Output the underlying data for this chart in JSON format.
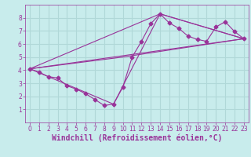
{
  "background_color": "#c8ecec",
  "grid_color": "#b0d8d8",
  "line_color": "#993399",
  "xlabel": "Windchill (Refroidissement éolien,°C)",
  "xlim": [
    -0.5,
    23.5
  ],
  "ylim": [
    0,
    9
  ],
  "xticks": [
    0,
    1,
    2,
    3,
    4,
    5,
    6,
    7,
    8,
    9,
    10,
    11,
    12,
    13,
    14,
    15,
    16,
    17,
    18,
    19,
    20,
    21,
    22,
    23
  ],
  "yticks": [
    1,
    2,
    3,
    4,
    5,
    6,
    7,
    8
  ],
  "line1_x": [
    0,
    1,
    2,
    3,
    4,
    5,
    6,
    7,
    8,
    9,
    10,
    11,
    12,
    13,
    14,
    15,
    16,
    17,
    18,
    19,
    20,
    21,
    22,
    23
  ],
  "line1_y": [
    4.1,
    3.85,
    3.5,
    3.4,
    2.8,
    2.55,
    2.2,
    1.75,
    1.3,
    1.4,
    2.7,
    5.0,
    6.2,
    7.55,
    8.3,
    7.6,
    7.2,
    6.6,
    6.35,
    6.2,
    7.3,
    7.7,
    6.95,
    6.4
  ],
  "line2_x": [
    0,
    23
  ],
  "line2_y": [
    4.1,
    6.4
  ],
  "line3_x": [
    0,
    23
  ],
  "line3_y": [
    4.1,
    6.4
  ],
  "line4_x": [
    0,
    10,
    23
  ],
  "line4_y": [
    4.1,
    5.0,
    6.4
  ],
  "line5_x": [
    0,
    9,
    14,
    23
  ],
  "line5_y": [
    4.1,
    1.4,
    8.3,
    6.4
  ],
  "line6_x": [
    0,
    14,
    23
  ],
  "line6_y": [
    4.1,
    8.3,
    6.4
  ],
  "tick_fontsize": 5.5,
  "xlabel_fontsize": 7.0
}
